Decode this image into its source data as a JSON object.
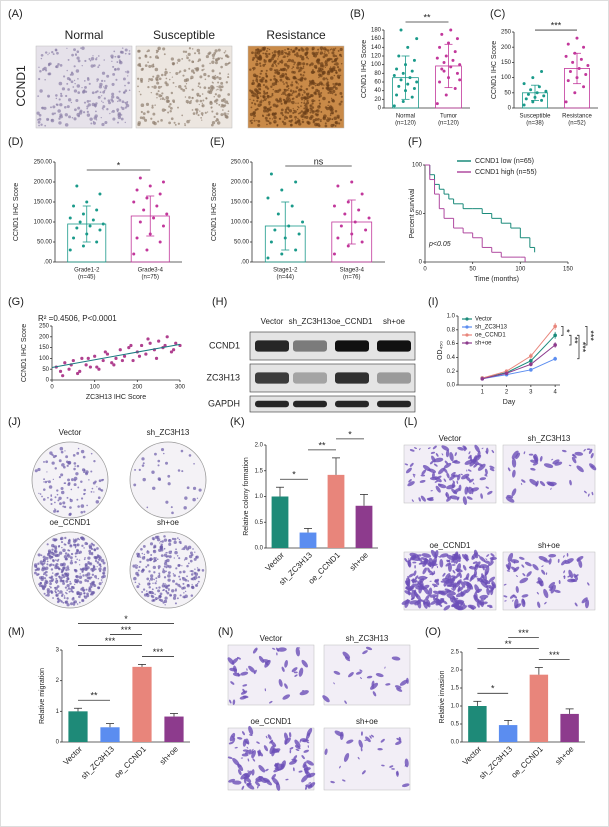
{
  "chart_data": [
    {
      "type": "bar",
      "panel": "(B)",
      "y_label": "CCND1 IHC Score",
      "categories": [
        "Normal",
        "Tumor"
      ],
      "category_notes": [
        "(n=120)",
        "(n=120)"
      ],
      "values": [
        70,
        97
      ],
      "errors": [
        50,
        50
      ],
      "colors": [
        "#1a9a8a",
        "#c2379b"
      ],
      "bar_style": "outline",
      "points": [
        [
          5,
          15,
          25,
          30,
          40,
          45,
          50,
          55,
          60,
          65,
          70,
          75,
          80,
          85,
          90,
          100,
          110,
          120,
          140,
          160,
          180
        ],
        [
          10,
          30,
          45,
          60,
          70,
          80,
          90,
          95,
          100,
          105,
          110,
          115,
          120,
          130,
          140,
          150,
          160,
          170,
          180,
          65,
          85
        ]
      ],
      "ylim": [
        0,
        180
      ],
      "yticks": [
        0,
        20,
        40,
        60,
        80,
        100,
        120,
        140,
        160,
        180
      ],
      "comparisons": [
        {
          "label": "**",
          "groups": [
            "Normal",
            "Tumor"
          ]
        }
      ]
    },
    {
      "type": "bar",
      "panel": "(C)",
      "y_label": "CCND1 IHC Score",
      "categories": [
        "Susceptible",
        "Resistance"
      ],
      "category_notes": [
        "(n=38)",
        "(n=52)"
      ],
      "values": [
        50,
        130
      ],
      "errors": [
        25,
        50
      ],
      "colors": [
        "#1a9a8a",
        "#c2379b"
      ],
      "bar_style": "outline",
      "points": [
        [
          10,
          20,
          25,
          30,
          35,
          40,
          45,
          50,
          55,
          60,
          70,
          80,
          100,
          120
        ],
        [
          20,
          50,
          70,
          90,
          100,
          110,
          120,
          130,
          140,
          150,
          160,
          170,
          180,
          200,
          210,
          230
        ]
      ],
      "ylim": [
        0,
        250
      ],
      "yticks": [
        0,
        50,
        100,
        150,
        200,
        250
      ],
      "comparisons": [
        {
          "label": "***",
          "groups": [
            "Susceptible",
            "Resistance"
          ]
        }
      ]
    },
    {
      "type": "bar",
      "panel": "(D)",
      "y_label": "CCND1 IHC Score",
      "categories": [
        "Grade1-2",
        "Grade3-4"
      ],
      "category_notes": [
        "(n=45)",
        "(n=75)"
      ],
      "values": [
        95,
        115
      ],
      "errors": [
        45,
        50
      ],
      "colors": [
        "#1a9a8a",
        "#c2379b"
      ],
      "bar_style": "outline",
      "points": [
        [
          30,
          40,
          50,
          60,
          70,
          80,
          85,
          90,
          95,
          100,
          105,
          110,
          120,
          130,
          140,
          150,
          170,
          190
        ],
        [
          20,
          30,
          50,
          60,
          70,
          90,
          100,
          110,
          120,
          130,
          140,
          150,
          160,
          170,
          180,
          190,
          200,
          210
        ]
      ],
      "ylim": [
        0,
        250
      ],
      "yticks": [
        {
          "value": 0,
          "label": ".00"
        },
        {
          "value": 50,
          "label": "50.00"
        },
        {
          "value": 100,
          "label": "100.00"
        },
        {
          "value": 150,
          "label": "150.00"
        },
        {
          "value": 200,
          "label": "200.00"
        },
        {
          "value": 250,
          "label": "250.00"
        }
      ],
      "comparisons": [
        {
          "label": "*",
          "groups": [
            "Grade1-2",
            "Grade3-4"
          ]
        }
      ]
    },
    {
      "type": "bar",
      "panel": "(E)",
      "y_label": "CCND1 IHC Score",
      "categories": [
        "Stage1-2",
        "Stage3-4"
      ],
      "category_notes": [
        "(n=44)",
        "(n=76)"
      ],
      "values": [
        90,
        100
      ],
      "errors": [
        60,
        55
      ],
      "colors": [
        "#1a9a8a",
        "#c2379b"
      ],
      "bar_style": "outline",
      "points": [
        [
          10,
          20,
          30,
          50,
          60,
          70,
          80,
          90,
          100,
          120,
          140,
          160,
          180,
          200,
          220
        ],
        [
          20,
          40,
          50,
          60,
          70,
          80,
          90,
          100,
          110,
          120,
          130,
          140,
          150,
          170,
          190,
          200
        ]
      ],
      "ylim": [
        0,
        250
      ],
      "yticks": [
        {
          "value": 0,
          "label": ".00"
        },
        {
          "value": 50,
          "label": "50.00"
        },
        {
          "value": 100,
          "label": "100.00"
        },
        {
          "value": 150,
          "label": "150.00"
        },
        {
          "value": 200,
          "label": "200.00"
        },
        {
          "value": 250,
          "label": "250.00"
        }
      ],
      "comparisons": [
        {
          "label": "ns",
          "groups": [
            "Stage1-2",
            "Stage3-4"
          ]
        }
      ]
    },
    {
      "type": "survival",
      "panel": "(F)",
      "x_label": "Time (months)",
      "y_label": "Percent survival",
      "annotation": "p<0.05",
      "series": [
        {
          "name": "CCND1 low (n=65)",
          "color": "#1a8a7a",
          "x": [
            0,
            5,
            10,
            15,
            20,
            25,
            30,
            40,
            50,
            60,
            70,
            80,
            90,
            100,
            110,
            115
          ],
          "values": [
            100,
            90,
            80,
            75,
            70,
            65,
            60,
            55,
            55,
            50,
            45,
            40,
            35,
            25,
            15,
            10
          ]
        },
        {
          "name": "CCND1 high (n=55)",
          "color": "#b04aa0",
          "x": [
            0,
            5,
            10,
            15,
            20,
            30,
            40,
            50,
            60,
            70,
            80,
            100,
            105
          ],
          "values": [
            100,
            85,
            70,
            55,
            45,
            35,
            30,
            25,
            15,
            10,
            5,
            5,
            0
          ]
        }
      ],
      "xlim": [
        0,
        150
      ],
      "xticks": [
        0,
        50,
        100,
        150
      ],
      "ylim": [
        0,
        100
      ],
      "yticks": [
        0,
        50,
        100
      ]
    },
    {
      "type": "scatter",
      "panel": "(G)",
      "annotation": "R² =0.4506, P<0.0001",
      "x_label": "ZC3H13 IHC Score",
      "y_label": "CCND1 IHC Score",
      "color": "#b0408f",
      "line_color": "#1a7a80",
      "x": [
        10,
        20,
        30,
        40,
        50,
        60,
        70,
        80,
        90,
        100,
        110,
        120,
        130,
        140,
        150,
        160,
        170,
        180,
        190,
        200,
        210,
        220,
        230,
        240,
        250,
        260,
        270,
        280,
        290,
        300,
        25,
        45,
        65,
        85,
        105,
        125,
        145,
        165,
        185,
        205,
        225,
        245,
        265,
        285
      ],
      "values": [
        60,
        40,
        80,
        50,
        90,
        30,
        100,
        70,
        60,
        110,
        50,
        90,
        120,
        80,
        100,
        140,
        110,
        150,
        90,
        130,
        160,
        120,
        170,
        140,
        180,
        150,
        200,
        130,
        170,
        160,
        20,
        70,
        40,
        100,
        60,
        130,
        70,
        90,
        160,
        110,
        190,
        100,
        160,
        140
      ],
      "fit": {
        "x": [
          0,
          300
        ],
        "values": [
          58,
          165
        ]
      },
      "xlim": [
        0,
        300
      ],
      "xticks": [
        0,
        100,
        200,
        300
      ],
      "ylim": [
        0,
        250
      ],
      "yticks": [
        0,
        50,
        100,
        150,
        200,
        250
      ]
    },
    {
      "type": "line",
      "panel": "(I)",
      "x_label": "Day",
      "y_label": "OD₄₅₀",
      "x": [
        1,
        2,
        3,
        4
      ],
      "series": [
        {
          "name": "Vector",
          "color": "#1a8a7a",
          "values": [
            0.1,
            0.18,
            0.35,
            0.72
          ],
          "errors": [
            0.01,
            0.02,
            0.03,
            0.05
          ]
        },
        {
          "name": "sh_ZC3H13",
          "color": "#5b8df0",
          "values": [
            0.09,
            0.15,
            0.22,
            0.38
          ],
          "errors": [
            0.01,
            0.02,
            0.02,
            0.03
          ]
        },
        {
          "name": "oe_CCND1",
          "color": "#e8857b",
          "values": [
            0.1,
            0.2,
            0.42,
            0.85
          ],
          "errors": [
            0.01,
            0.02,
            0.04,
            0.05
          ]
        },
        {
          "name": "sh+oe",
          "color": "#8d3b8d",
          "values": [
            0.09,
            0.17,
            0.3,
            0.58
          ],
          "errors": [
            0.01,
            0.02,
            0.03,
            0.04
          ]
        }
      ],
      "xlim": [
        0,
        4.2
      ],
      "xticks": [
        1,
        2,
        3,
        4
      ],
      "ylim": [
        0,
        1
      ],
      "yticks": [
        {
          "value": 0,
          "label": "0.0"
        },
        0.2,
        0.4,
        0.6,
        0.8,
        {
          "value": 1,
          "label": "1.0"
        }
      ],
      "comparisons": [
        {
          "label": "*",
          "groups": [
            "oe_CCND1",
            "Vector"
          ]
        },
        {
          "label": "**",
          "groups": [
            "Vector",
            "sh+oe"
          ]
        },
        {
          "label": "***",
          "groups": [
            "Vector",
            "sh_ZC3H13"
          ]
        },
        {
          "label": "***",
          "groups": [
            "oe_CCND1",
            "sh+oe"
          ]
        }
      ]
    },
    {
      "type": "bar",
      "panel": "(K)",
      "y_label": "Relative colony formation",
      "categories": [
        "Vector",
        "sh_ZC3H13",
        "oe_CCND1",
        "sh+oe"
      ],
      "values": [
        1.0,
        0.3,
        1.42,
        0.82
      ],
      "errors": [
        0.18,
        0.08,
        0.33,
        0.22
      ],
      "colors": [
        "#1e8a78",
        "#5b8df0",
        "#e8857b",
        "#8d3b8d"
      ],
      "bar_style": "filled",
      "rotate_labels": true,
      "ylim": [
        0,
        2
      ],
      "yticks": [
        {
          "value": 0,
          "label": "0.0"
        },
        0.5,
        {
          "value": 1,
          "label": "1.0"
        },
        1.5,
        {
          "value": 2,
          "label": "2.0"
        }
      ],
      "comparisons": [
        {
          "label": "*",
          "groups": [
            "Vector",
            "sh_ZC3H13"
          ]
        },
        {
          "label": "**",
          "groups": [
            "sh_ZC3H13",
            "oe_CCND1"
          ]
        },
        {
          "label": "*",
          "groups": [
            "oe_CCND1",
            "sh+oe"
          ]
        }
      ]
    },
    {
      "type": "bar",
      "panel": "(M)",
      "y_label": "Relative migration",
      "categories": [
        "Vector",
        "sh_ZC3H13",
        "oe_CCND1",
        "sh+oe"
      ],
      "values": [
        1.0,
        0.48,
        2.45,
        0.83
      ],
      "errors": [
        0.1,
        0.12,
        0.08,
        0.1
      ],
      "colors": [
        "#1e8a78",
        "#5b8df0",
        "#e8857b",
        "#8d3b8d"
      ],
      "bar_style": "filled",
      "rotate_labels": true,
      "ylim": [
        0,
        3
      ],
      "yticks": [
        0,
        1,
        2,
        3
      ],
      "comparisons": [
        {
          "label": "**",
          "groups": [
            "Vector",
            "sh_ZC3H13"
          ]
        },
        {
          "label": "***",
          "groups": [
            "oe_CCND1",
            "sh+oe"
          ]
        },
        {
          "label": "***",
          "groups": [
            "Vector",
            "oe_CCND1"
          ]
        },
        {
          "label": "***",
          "groups": [
            "sh_ZC3H13",
            "oe_CCND1"
          ]
        },
        {
          "label": "*",
          "groups": [
            "Vector",
            "sh+oe"
          ]
        }
      ]
    },
    {
      "type": "bar",
      "panel": "(O)",
      "y_label": "Relative invasion",
      "categories": [
        "Vector",
        "sh_ZC3H13",
        "oe_CCND1",
        "sh+oe"
      ],
      "values": [
        1.0,
        0.47,
        1.87,
        0.78
      ],
      "errors": [
        0.13,
        0.13,
        0.2,
        0.14
      ],
      "colors": [
        "#1e8a78",
        "#5b8df0",
        "#e8857b",
        "#8d3b8d"
      ],
      "bar_style": "filled",
      "rotate_labels": true,
      "ylim": [
        0,
        2.5
      ],
      "yticks": [
        {
          "value": 0,
          "label": "0.0"
        },
        0.5,
        {
          "value": 1,
          "label": "1.0"
        },
        1.5,
        {
          "value": 2,
          "label": "2.0"
        },
        2.5
      ],
      "comparisons": [
        {
          "label": "*",
          "groups": [
            "Vector",
            "sh_ZC3H13"
          ]
        },
        {
          "label": "***",
          "groups": [
            "oe_CCND1",
            "sh+oe"
          ]
        },
        {
          "label": "**",
          "groups": [
            "Vector",
            "oe_CCND1"
          ]
        },
        {
          "label": "***",
          "groups": [
            "sh_ZC3H13",
            "oe_CCND1"
          ]
        }
      ]
    }
  ],
  "image_panels": {
    "A": {
      "panel": "(A)",
      "row_label": "CCND1",
      "columns": [
        "Normal",
        "Susceptible",
        "Resistance"
      ]
    },
    "H": {
      "panel": "(H)",
      "columns": [
        "Vector",
        "sh_ZC3H13",
        "oe_CCND1",
        "sh+oe"
      ],
      "rows": [
        "CCND1",
        "ZC3H13",
        "GAPDH"
      ]
    },
    "J": {
      "panel": "(J)",
      "columns": [
        "Vector",
        "sh_ZC3H13",
        "oe_CCND1",
        "sh+oe"
      ]
    },
    "L": {
      "panel": "(L)",
      "columns": [
        "Vector",
        "sh_ZC3H13",
        "oe_CCND1",
        "sh+oe"
      ]
    },
    "N": {
      "panel": "(N)",
      "columns": [
        "Vector",
        "sh_ZC3H13",
        "oe_CCND1",
        "sh+oe"
      ]
    }
  }
}
